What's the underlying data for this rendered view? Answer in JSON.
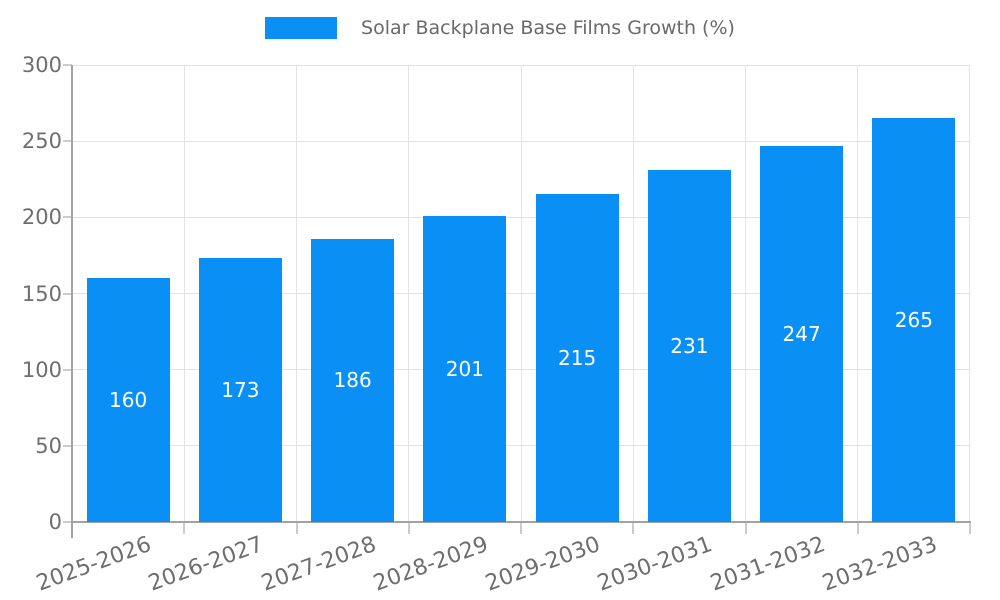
{
  "chart_data": {
    "type": "bar",
    "title": "Solar Backplane Base Films Growth (%)",
    "legend": {
      "label": "Solar Backplane Base Films Growth (%)",
      "position": "top"
    },
    "categories": [
      "2025-2026",
      "2026-2027",
      "2027-2028",
      "2028-2029",
      "2029-2030",
      "2030-2031",
      "2031-2032",
      "2032-2033"
    ],
    "values": [
      160,
      173,
      186,
      201,
      215,
      231,
      247,
      265
    ],
    "xlabel": "",
    "ylabel": "",
    "ylim": [
      0,
      300
    ],
    "yticks": [
      0,
      50,
      100,
      150,
      200,
      250,
      300
    ],
    "grid": true,
    "colors": {
      "bar": "#0a90f5",
      "value_label": "#ffffff",
      "tick_text": "#6e6e6e",
      "legend_text": "#6a6a6a",
      "gridline": "#e3e3e3",
      "axis": "#a3a3a3"
    }
  }
}
